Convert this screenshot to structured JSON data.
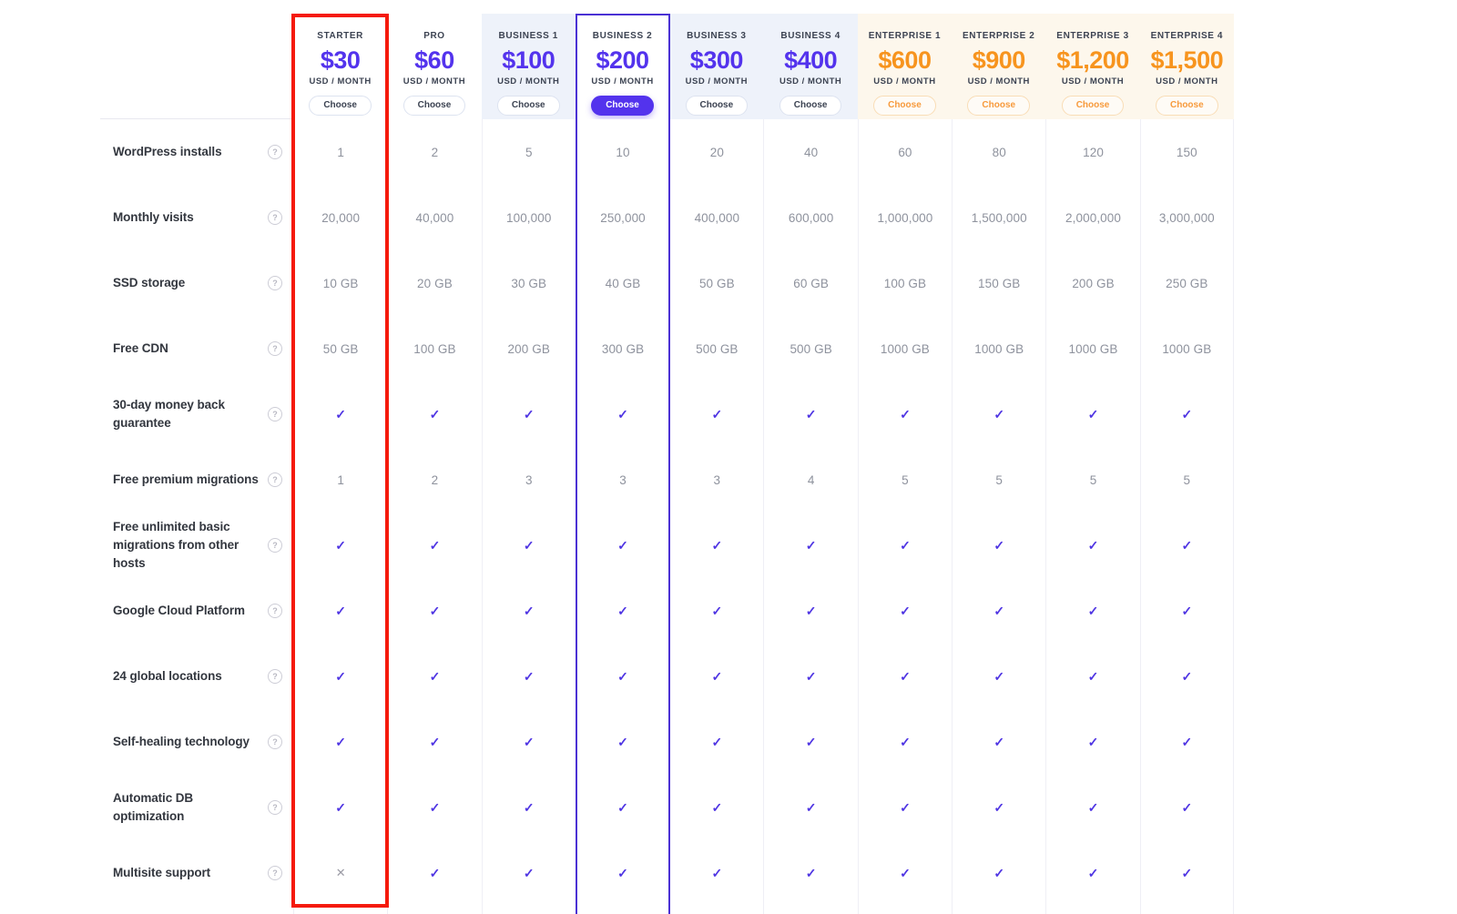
{
  "table": {
    "per_label": "USD / MONTH",
    "choose_label": "Choose",
    "plans": [
      {
        "name": "STARTER",
        "price": "$30",
        "theme": "purple",
        "bg": "white",
        "button": "default",
        "highlight": "red-frame"
      },
      {
        "name": "PRO",
        "price": "$60",
        "theme": "purple",
        "bg": "white",
        "button": "default"
      },
      {
        "name": "BUSINESS 1",
        "price": "$100",
        "theme": "purple",
        "bg": "blue",
        "button": "default"
      },
      {
        "name": "BUSINESS 2",
        "price": "$200",
        "theme": "purple",
        "bg": "white",
        "button": "primary",
        "highlight": "purple-frame"
      },
      {
        "name": "BUSINESS 3",
        "price": "$300",
        "theme": "purple",
        "bg": "blue",
        "button": "default"
      },
      {
        "name": "BUSINESS 4",
        "price": "$400",
        "theme": "purple",
        "bg": "blue",
        "button": "default"
      },
      {
        "name": "ENTERPRISE 1",
        "price": "$600",
        "theme": "orange",
        "bg": "cream",
        "button": "orangebtn"
      },
      {
        "name": "ENTERPRISE 2",
        "price": "$900",
        "theme": "orange",
        "bg": "cream",
        "button": "orangebtn"
      },
      {
        "name": "ENTERPRISE 3",
        "price": "$1,200",
        "theme": "orange",
        "bg": "cream",
        "button": "orangebtn"
      },
      {
        "name": "ENTERPRISE 4",
        "price": "$1,500",
        "theme": "orange",
        "bg": "cream",
        "button": "orangebtn"
      }
    ],
    "features": [
      {
        "label": "WordPress installs",
        "values": [
          "1",
          "2",
          "5",
          "10",
          "20",
          "40",
          "60",
          "80",
          "120",
          "150"
        ]
      },
      {
        "label": "Monthly visits",
        "values": [
          "20,000",
          "40,000",
          "100,000",
          "250,000",
          "400,000",
          "600,000",
          "1,000,000",
          "1,500,000",
          "2,000,000",
          "3,000,000"
        ]
      },
      {
        "label": "SSD storage",
        "values": [
          "10 GB",
          "20 GB",
          "30 GB",
          "40 GB",
          "50 GB",
          "60 GB",
          "100 GB",
          "150 GB",
          "200 GB",
          "250 GB"
        ]
      },
      {
        "label": "Free CDN",
        "values": [
          "50 GB",
          "100 GB",
          "200 GB",
          "300 GB",
          "500 GB",
          "500 GB",
          "1000 GB",
          "1000 GB",
          "1000 GB",
          "1000 GB"
        ]
      },
      {
        "label": "30-day money back guarantee",
        "values": [
          "check",
          "check",
          "check",
          "check",
          "check",
          "check",
          "check",
          "check",
          "check",
          "check"
        ]
      },
      {
        "label": "Free premium migrations",
        "values": [
          "1",
          "2",
          "3",
          "3",
          "3",
          "4",
          "5",
          "5",
          "5",
          "5"
        ]
      },
      {
        "label": "Free unlimited basic migrations from other hosts",
        "values": [
          "check",
          "check",
          "check",
          "check",
          "check",
          "check",
          "check",
          "check",
          "check",
          "check"
        ]
      },
      {
        "label": "Google Cloud Platform",
        "values": [
          "check",
          "check",
          "check",
          "check",
          "check",
          "check",
          "check",
          "check",
          "check",
          "check"
        ]
      },
      {
        "label": "24 global locations",
        "values": [
          "check",
          "check",
          "check",
          "check",
          "check",
          "check",
          "check",
          "check",
          "check",
          "check"
        ]
      },
      {
        "label": "Self-healing technology",
        "values": [
          "check",
          "check",
          "check",
          "check",
          "check",
          "check",
          "check",
          "check",
          "check",
          "check"
        ]
      },
      {
        "label": "Automatic DB optimization",
        "values": [
          "check",
          "check",
          "check",
          "check",
          "check",
          "check",
          "check",
          "check",
          "check",
          "check"
        ]
      },
      {
        "label": "Multisite support",
        "values": [
          "cross",
          "check",
          "check",
          "check",
          "check",
          "check",
          "check",
          "check",
          "check",
          "check"
        ]
      }
    ]
  },
  "icons": {
    "help": "?",
    "check": "✓",
    "cross": "✕"
  },
  "colors": {
    "brand_purple": "#5333ED",
    "brand_orange": "#F7941E",
    "highlight_red": "#F51A0C",
    "business_column_bg": "#EEF2FA",
    "enterprise_column_bg": "#FDF7EC",
    "value_text": "#8E929D",
    "label_text": "#33373F"
  }
}
